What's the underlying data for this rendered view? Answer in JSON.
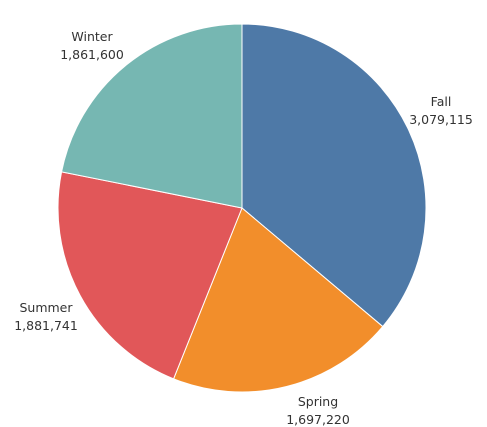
{
  "chart_data": {
    "type": "pie",
    "slices": [
      {
        "name": "Fall",
        "value": 3079115,
        "value_label": "3,079,115",
        "color": "#4e79a7"
      },
      {
        "name": "Spring",
        "value": 1697220,
        "value_label": "1,697,220",
        "color": "#f28e2b"
      },
      {
        "name": "Summer",
        "value": 1881741,
        "value_label": "1,881,741",
        "color": "#e15759"
      },
      {
        "name": "Winter",
        "value": 1861600,
        "value_label": "1,861,600",
        "color": "#76b7b2"
      }
    ],
    "title": "",
    "legend": "none",
    "start_angle": "12 o'clock",
    "direction": "clockwise"
  }
}
